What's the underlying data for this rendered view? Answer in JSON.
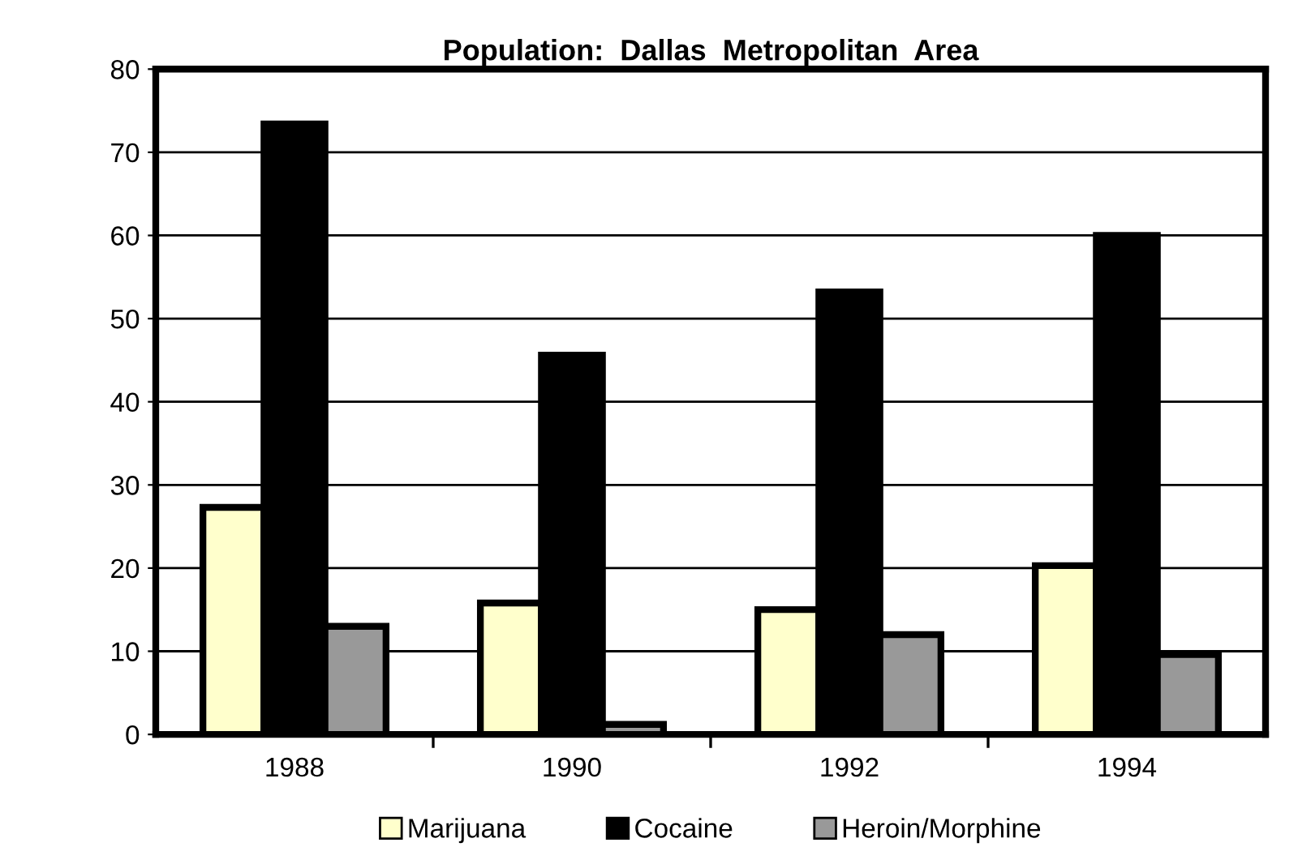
{
  "chart_data": {
    "type": "bar",
    "title": "Population:  Dallas  Metropolitan  Area",
    "categories": [
      "1988",
      "1990",
      "1992",
      "1994"
    ],
    "series": [
      {
        "name": "Marijuana",
        "color": "#ffffcc",
        "values": [
          27.3,
          15.8,
          15,
          20.3
        ]
      },
      {
        "name": "Cocaine",
        "color": "#000000",
        "values": [
          73.4,
          45.6,
          53.2,
          60
        ]
      },
      {
        "name": "Heroin/Morphine",
        "color": "#999999",
        "values": [
          13,
          1.2,
          12,
          9.6
        ]
      }
    ],
    "ylim": [
      0,
      80
    ],
    "yticks": [
      0,
      10,
      20,
      30,
      40,
      50,
      60,
      70,
      80
    ],
    "grid": "y",
    "legend": "bottom"
  }
}
